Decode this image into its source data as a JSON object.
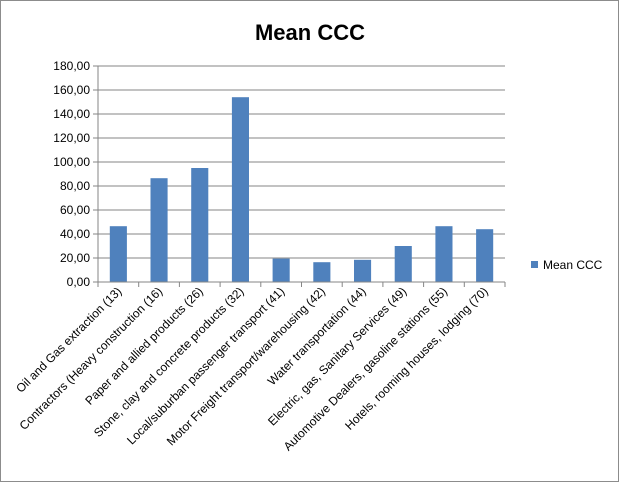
{
  "chart_data": {
    "type": "bar",
    "title": "Mean CCC",
    "xlabel": "",
    "ylabel": "",
    "categories": [
      "Oil and Gas extraction (13)",
      "Contractors (Heavy construction (16)",
      "Paper and allied products (26)",
      "Stone, clay and concrete products (32)",
      "Local/suburban passenger transport (41)",
      "Motor Freight transport/warehousing (42)",
      "Water transportation (44)",
      "Electric, gas, Sanitary Services (49)",
      "Automotive Dealers, gasoline stations (55)",
      "Hotels, rooming houses, lodging (70)"
    ],
    "series": [
      {
        "name": "Mean CCC",
        "values": [
          46.5,
          86.5,
          95.0,
          154.0,
          19.5,
          16.5,
          18.5,
          30.0,
          46.5,
          44.0
        ],
        "color": "#4f81bd"
      }
    ],
    "ylim": [
      0,
      180
    ],
    "yticks": [
      "0,00",
      "20,00",
      "40,00",
      "60,00",
      "80,00",
      "100,00",
      "120,00",
      "140,00",
      "160,00",
      "180,00"
    ],
    "grid": true,
    "legend": {
      "position": "right",
      "entries": [
        "Mean CCC"
      ]
    }
  }
}
